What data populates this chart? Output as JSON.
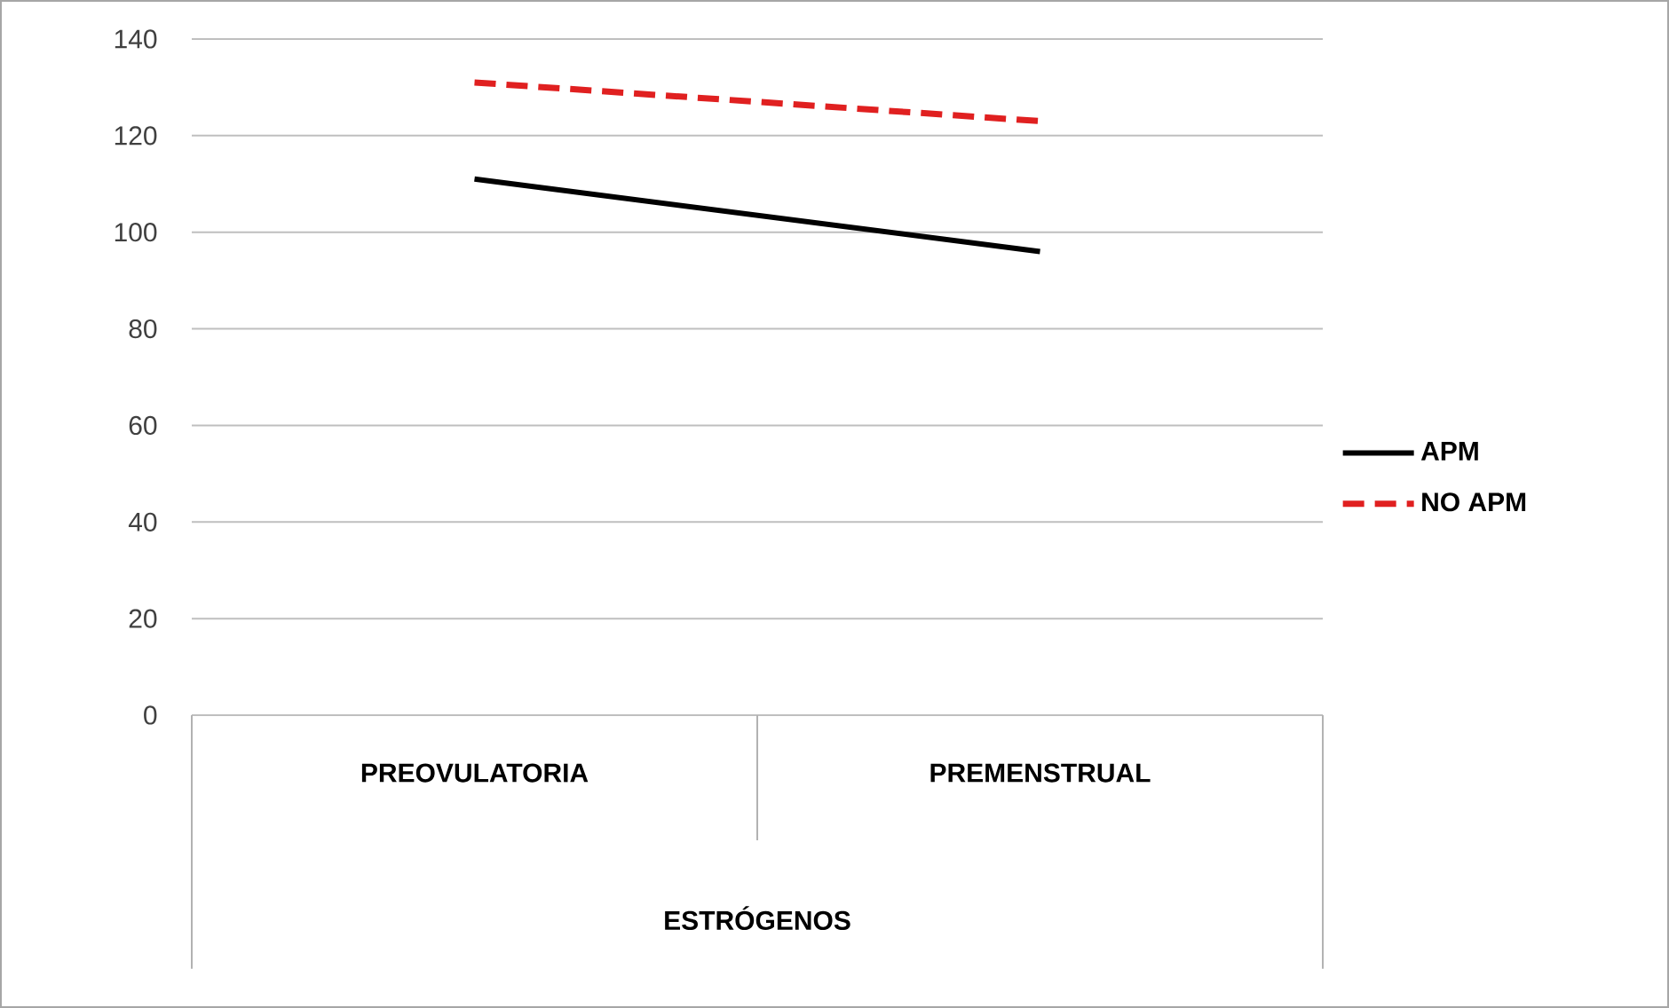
{
  "chart_data": {
    "type": "line",
    "xlabel": "ESTRÓGENOS",
    "categories": [
      "PREOVULATORIA",
      "PREMENSTRUAL"
    ],
    "series": [
      {
        "name": "APM",
        "color": "#000000",
        "values": [
          111,
          96
        ],
        "line_style": "solid"
      },
      {
        "name": "NO APM",
        "color": "#e02020",
        "values": [
          131,
          123
        ],
        "line_style": "dashed"
      }
    ],
    "ylim": [
      0,
      140
    ],
    "yticks": [
      0,
      20,
      40,
      60,
      80,
      100,
      120,
      140
    ],
    "grid": "y",
    "legend": "right",
    "marker": "none"
  }
}
